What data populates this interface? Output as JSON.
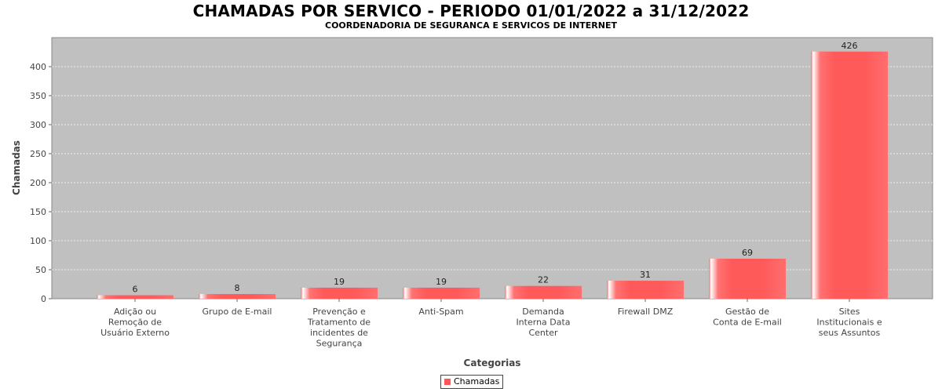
{
  "chart_data": {
    "type": "bar",
    "title": "CHAMADAS POR SERVICO - PERIODO 01/01/2022 a 31/12/2022",
    "subtitle": "COORDENADORIA DE SEGURANCA E SERVICOS DE INTERNET",
    "xlabel": "Categorias",
    "ylabel": "Chamadas",
    "ylim": [
      0,
      450
    ],
    "yticks": [
      0,
      50,
      100,
      150,
      200,
      250,
      300,
      350,
      400
    ],
    "grid": true,
    "legend_position": "bottom",
    "categories": [
      "Adição ou Remoção de Usuário Externo",
      "Grupo de E-mail",
      "Prevenção e Tratamento de incidentes de Segurança",
      "Anti-Spam",
      "Demanda Interna Data Center",
      "Firewall DMZ",
      "Gestão de Conta de E-mail",
      "Sites Institucionais e seus Assuntos"
    ],
    "category_lines": [
      [
        "Adição ou",
        "Remoção de",
        "Usuário Externo"
      ],
      [
        "Grupo de E-mail"
      ],
      [
        "Prevenção e",
        "Tratamento de",
        "incidentes de",
        "Segurança"
      ],
      [
        "Anti-Spam"
      ],
      [
        "Demanda",
        "Interna Data",
        "Center"
      ],
      [
        "Firewall DMZ"
      ],
      [
        "Gestão de",
        "Conta de E-mail"
      ],
      [
        "Sites",
        "Institucionais e",
        "seus Assuntos"
      ]
    ],
    "series": [
      {
        "name": "Chamadas",
        "values": [
          6,
          8,
          19,
          19,
          22,
          31,
          69,
          426
        ],
        "color": "#ff5555"
      }
    ],
    "colors": {
      "plot_background": "#c0c0c0",
      "bar": "#ff5555"
    }
  }
}
